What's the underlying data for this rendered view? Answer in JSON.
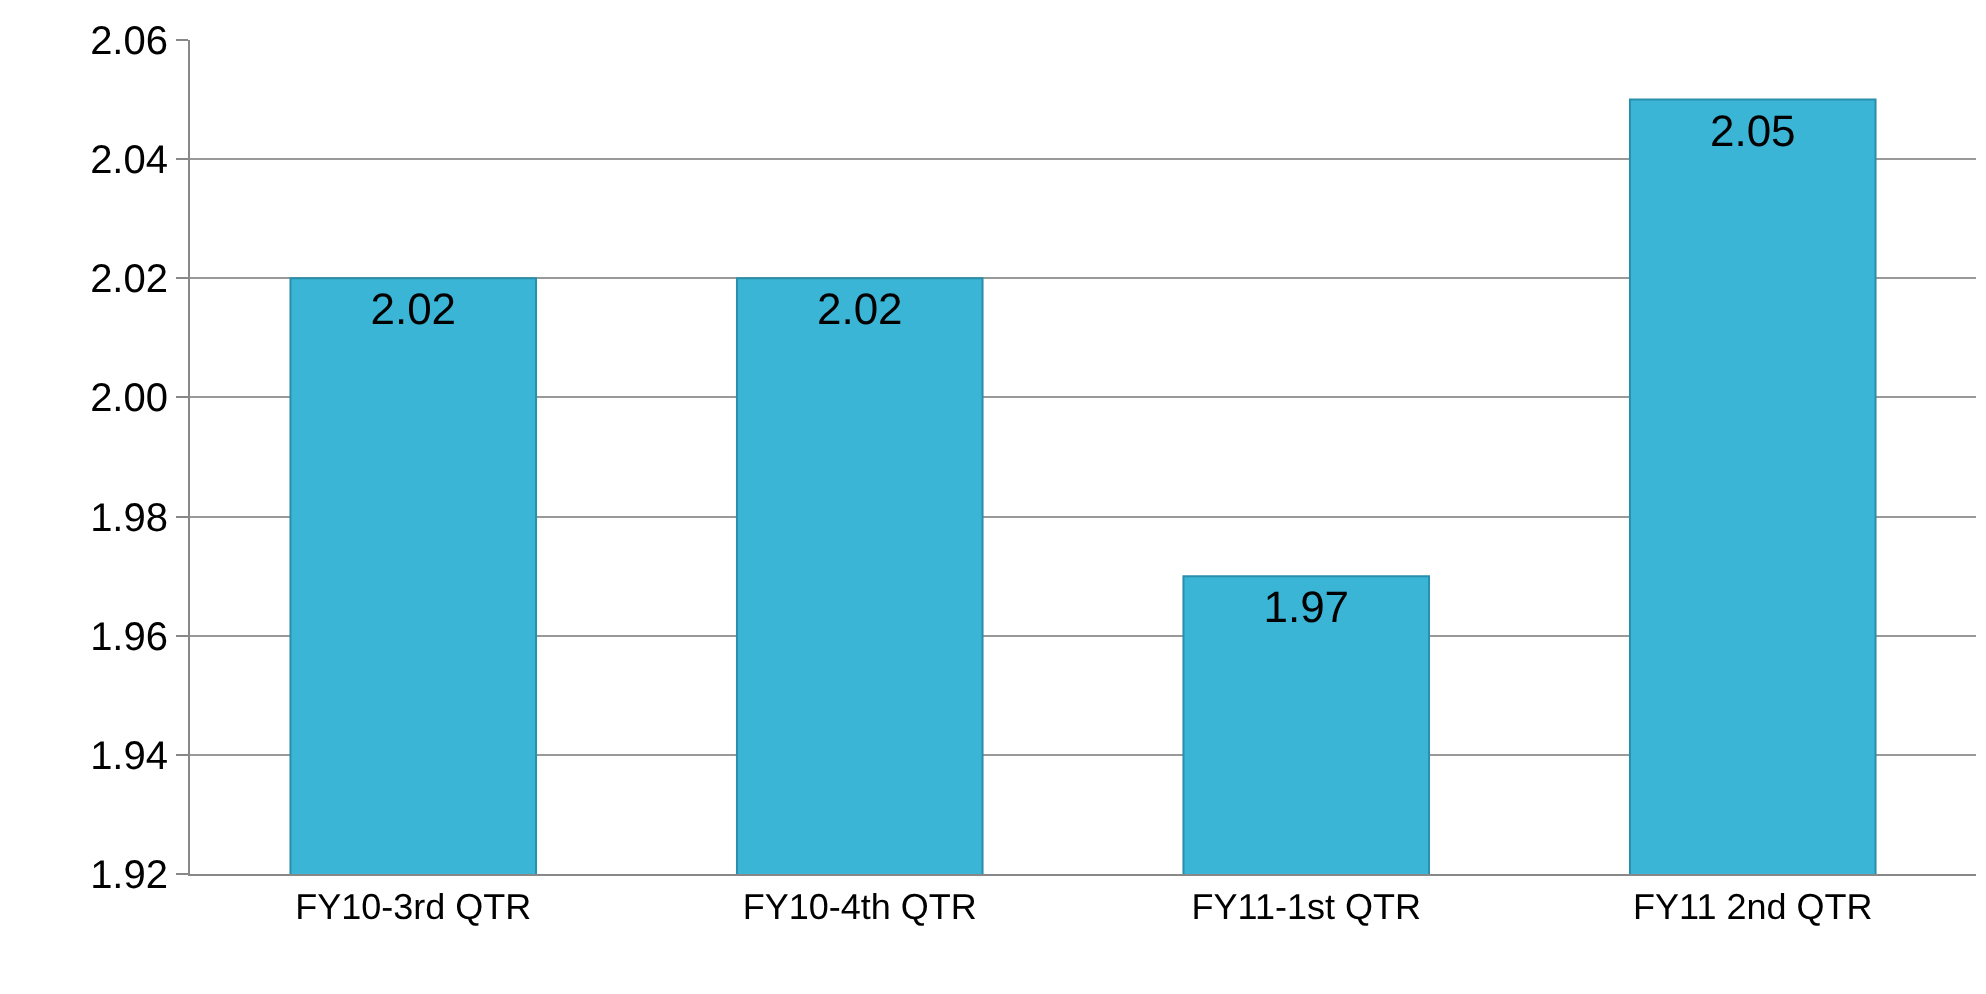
{
  "chart_data": {
    "type": "bar",
    "categories": [
      "FY10-3rd QTR",
      "FY10-4th QTR",
      "FY11-1st QTR",
      "FY11 2nd QTR"
    ],
    "values": [
      2.02,
      2.02,
      1.97,
      2.05
    ],
    "color": "#3ab5d6",
    "data_labels": true,
    "grid": "y",
    "ylim": [
      1.92,
      2.06
    ],
    "yticks": [
      {
        "value": 1.92,
        "label": "1.92"
      },
      {
        "value": 1.94,
        "label": "1.94"
      },
      {
        "value": 1.96,
        "label": "1.96"
      },
      {
        "value": 1.98,
        "label": "1.98"
      },
      {
        "value": 2.0,
        "label": "2.00"
      },
      {
        "value": 2.02,
        "label": "2.02"
      },
      {
        "value": 2.04,
        "label": "2.04"
      },
      {
        "value": 2.06,
        "label": "2.06"
      }
    ]
  }
}
